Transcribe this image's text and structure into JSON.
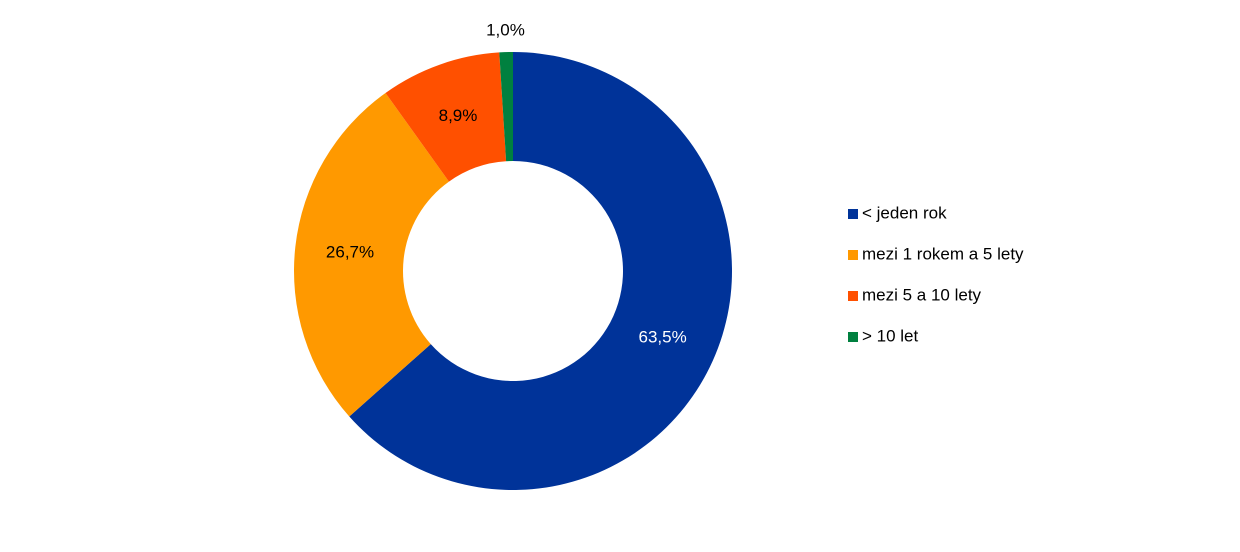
{
  "chart_data": {
    "type": "donut",
    "categories": [
      "< jeden rok",
      "mezi 1 rokem a 5 lety",
      "mezi 5 a 10 lety",
      "> 10 let"
    ],
    "values": [
      63.5,
      26.7,
      8.9,
      1.0
    ],
    "value_labels": [
      "63,5%",
      "26,7%",
      "8,9%",
      "1,0%"
    ],
    "colors": [
      "#003399",
      "#ff9900",
      "#ff5000",
      "#00803f"
    ],
    "legend": "right"
  }
}
